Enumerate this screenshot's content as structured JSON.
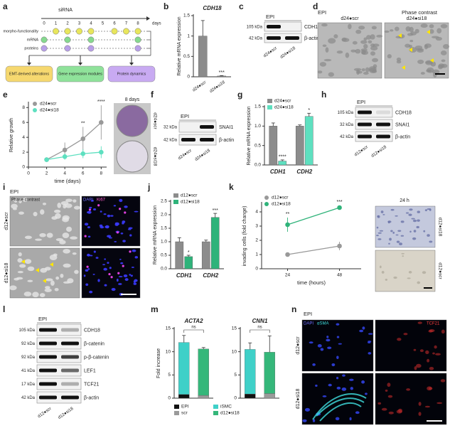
{
  "panel_labels": [
    "a",
    "b",
    "c",
    "d",
    "e",
    "f",
    "g",
    "h",
    "i",
    "j",
    "k",
    "l",
    "m",
    "n"
  ],
  "timeline": {
    "title": "siRNA",
    "days": [
      0,
      1,
      2,
      3,
      4,
      5,
      6,
      7,
      8
    ],
    "unit": "days",
    "rows": [
      {
        "label": "morpho-functionality",
        "color": "#e8e65c",
        "points": [
          1,
          2,
          3,
          4,
          6,
          7,
          8
        ]
      },
      {
        "label": "mRNA",
        "color": "#86d98f",
        "points": [
          0,
          2,
          4,
          8
        ]
      },
      {
        "label": "proteins",
        "color": "#b9a0e8",
        "points": [
          0,
          2,
          4,
          8
        ]
      }
    ],
    "outcomes": [
      {
        "label": "EMT-derived alterations",
        "color": "#f6d86f"
      },
      {
        "label": "Gene expression modules",
        "color": "#8fe29a"
      },
      {
        "label": "Protein dynamics",
        "color": "#c8aaf2"
      }
    ]
  },
  "chart_data": [
    {
      "type": "bar",
      "title": "CDH18",
      "ylabel": "Relative mRNA expression",
      "categories": [
        "d24●scr",
        "d24●si18"
      ],
      "values": [
        1.0,
        0.02
      ],
      "errors": [
        0.38,
        0.01
      ],
      "significance": [
        null,
        "***"
      ],
      "color": "#8c8c8c",
      "ylim": [
        0,
        1.5
      ],
      "yticks": [
        0,
        0.5,
        1,
        1.5
      ]
    },
    {
      "type": "line",
      "xlabel": "time (days)",
      "ylabel": "Relative growth",
      "x": [
        2,
        4,
        6,
        8
      ],
      "series": [
        {
          "name": "d24●scr",
          "color": "#999999",
          "values": [
            1.0,
            2.3,
            3.8,
            6.0
          ],
          "errors": [
            0.1,
            1.0,
            1.6,
            2.3
          ],
          "significance": [
            null,
            null,
            "**",
            "****"
          ]
        },
        {
          "name": "d24●si18",
          "color": "#5ee0c0",
          "values": [
            1.0,
            1.4,
            1.8,
            2.0
          ],
          "errors": [
            0.1,
            0.4,
            0.6,
            0.8
          ]
        }
      ],
      "xlim": [
        0,
        8.6
      ],
      "xticks": [
        0,
        2,
        4,
        6,
        8
      ],
      "ylim": [
        0,
        8.6
      ],
      "yticks": [
        0,
        2,
        4,
        6,
        8
      ]
    },
    {
      "type": "bar",
      "ylabel": "Relative mRNA expression",
      "categories": [
        "CDH1",
        "CDH2"
      ],
      "series": [
        {
          "name": "d24●scr",
          "color": "#8c8c8c",
          "values": [
            1.0,
            1.0
          ],
          "errors": [
            0.08,
            0.03
          ]
        },
        {
          "name": "d24●si18",
          "color": "#5ee0c0",
          "values": [
            0.1,
            1.25
          ],
          "errors": [
            0.03,
            0.08
          ],
          "significance": [
            "****",
            "*"
          ]
        }
      ],
      "ylim": [
        0,
        1.5
      ],
      "yticks": [
        {
          "value": 0,
          "label": "0.0"
        },
        0.5,
        {
          "value": 1,
          "label": "1.0"
        },
        1.5
      ]
    },
    {
      "type": "bar",
      "ylabel": "Relative mRNA expression",
      "categories": [
        "CDH1",
        "CDH2"
      ],
      "series": [
        {
          "name": "d12●scr",
          "color": "#8c8c8c",
          "values": [
            1.0,
            1.0
          ],
          "errors": [
            0.15,
            0.06
          ]
        },
        {
          "name": "d12●si18",
          "color": "#2fb37a",
          "values": [
            0.45,
            1.9
          ],
          "errors": [
            0.05,
            0.15
          ],
          "significance": [
            "*",
            "***"
          ]
        }
      ],
      "ylim": [
        0,
        2.5
      ],
      "yticks": [
        {
          "value": 0,
          "label": "0.0"
        },
        0.5,
        {
          "value": 1,
          "label": "1.0"
        },
        1.5,
        {
          "value": 2,
          "label": "2.0"
        },
        2.5
      ]
    },
    {
      "type": "line",
      "xlabel": "time (hours)",
      "ylabel": "invading cells (fold change)",
      "x": [
        24,
        48
      ],
      "series": [
        {
          "name": "d12●scr",
          "color": "#999999",
          "values": [
            1.0,
            1.6
          ],
          "errors": [
            0.05,
            0.3
          ]
        },
        {
          "name": "d12●si18",
          "color": "#2fb37a",
          "values": [
            3.1,
            4.3
          ],
          "errors": [
            0.5,
            0.15
          ],
          "significance": [
            "**",
            "***"
          ]
        }
      ],
      "xlim": [
        12,
        58
      ],
      "xticks": [
        24,
        48
      ],
      "ylim": [
        0,
        4.6
      ],
      "yticks": [
        0,
        1,
        2,
        3,
        4
      ]
    },
    {
      "type": "stacked_bar",
      "title": "ACTA2",
      "ylabel": "Fold increase",
      "categories": [
        null,
        null
      ],
      "series": [
        {
          "name": "EPI",
          "color": "#111111",
          "values": [
            0.8,
            null
          ]
        },
        {
          "name": "iSMC",
          "color": "#3fd0c8",
          "values": [
            11.2,
            null
          ],
          "errors": [
            1.5,
            null
          ]
        },
        {
          "name": "scr",
          "color": "#9a9a9a",
          "values": [
            null,
            0.6
          ]
        },
        {
          "name": "d12●si18",
          "color": "#35b77a",
          "values": [
            null,
            10.0
          ],
          "errors": [
            null,
            0.3
          ]
        }
      ],
      "annotation": "ns",
      "ylim": [
        0,
        15
      ],
      "yticks": [
        0,
        5,
        10,
        15
      ]
    },
    {
      "type": "stacked_bar",
      "title": "CNN1",
      "categories": [
        null,
        null
      ],
      "series": [
        {
          "color": "#111111",
          "values": [
            0.9,
            null
          ]
        },
        {
          "color": "#3fd0c8",
          "values": [
            9.6,
            null
          ],
          "errors": [
            1.4,
            null
          ]
        },
        {
          "color": "#9a9a9a",
          "values": [
            null,
            1.0
          ]
        },
        {
          "color": "#35b77a",
          "values": [
            null,
            8.9
          ],
          "errors": [
            null,
            3.5
          ]
        }
      ],
      "annotation": "ns",
      "ylim": [
        0,
        15
      ],
      "yticks": [
        0,
        5,
        10,
        15
      ]
    }
  ],
  "blots": [
    {
      "header": "EPI",
      "lanes": [
        "d24●scr",
        "d24●si18"
      ],
      "rows": [
        {
          "kda": "105 kDa",
          "protein": "CDH18"
        },
        {
          "kda": "42 kDa",
          "protein": "β-actin"
        }
      ]
    },
    {
      "header": "EPI",
      "lanes": [
        "d24●scr",
        "d24●si18"
      ],
      "rows": [
        {
          "kda": "32 kDa",
          "protein": "SNAI1"
        },
        {
          "kda": "42 kDa",
          "protein": "β-actin"
        }
      ]
    },
    {
      "header": "EPI",
      "lanes": [
        "d12●scr",
        "d12●si18"
      ],
      "rows": [
        {
          "kda": "105 kDa",
          "protein": "CDH18"
        },
        {
          "kda": "32 kDa",
          "protein": "SNAI1"
        },
        {
          "kda": "42 kDa",
          "protein": "β-actin"
        }
      ]
    },
    {
      "header": "EPI",
      "lanes": [
        "d12●scr",
        "d12●si18"
      ],
      "rows": [
        {
          "kda": "105 kDa",
          "protein": "CDH18"
        },
        {
          "kda": "92 kDa",
          "protein": "β-catenin"
        },
        {
          "kda": "92 kDa",
          "protein": "p-β-catenin"
        },
        {
          "kda": "41 kDa",
          "protein": "LEF1"
        },
        {
          "kda": "17 kDa",
          "protein": "TCF21"
        },
        {
          "kda": "42 kDa",
          "protein": "β-actin"
        }
      ]
    }
  ],
  "micrographs": {
    "d": {
      "header": "EPI",
      "title": "Phase contrast",
      "panels": [
        "d24●scr",
        "d24●si18"
      ]
    },
    "e": {
      "title": "8 days",
      "labels": [
        "d24●scr",
        "d24●si18"
      ]
    },
    "i": {
      "header": "EPI",
      "channels": [
        "Phase contrast",
        "DAPI",
        "Ki67"
      ],
      "rows": [
        "d12●scr",
        "d12●si18"
      ]
    },
    "k": {
      "title": "24 h",
      "rows": [
        "d12●si18",
        "d12●scr"
      ]
    },
    "n": {
      "header": "EPI",
      "channels": [
        "DAPI",
        "αSMA",
        "TCF21"
      ],
      "rows": [
        "d12●scr",
        "d12●si18"
      ]
    }
  }
}
